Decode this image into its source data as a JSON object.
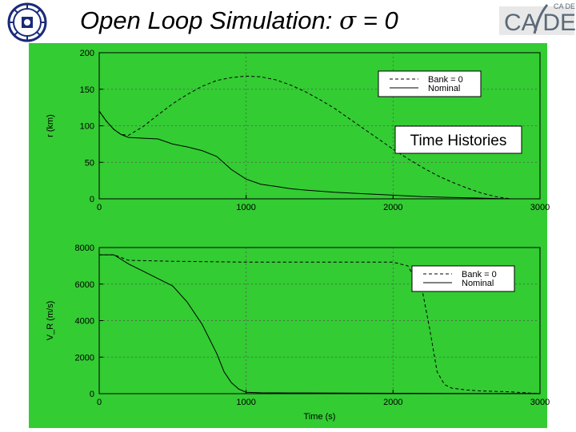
{
  "slide": {
    "title_prefix": "Open Loop Simulation: ",
    "title_symbol": "σ",
    "title_suffix": " = 0",
    "annotation": "Time Histories",
    "logo_right_text": "CA DE",
    "logo_right_small": "CA DE",
    "plot_bg_color": "#33cc33"
  },
  "chart_data": [
    {
      "type": "line",
      "xlabel": "",
      "ylabel": "r (km)",
      "xlim": [
        0,
        3000
      ],
      "ylim": [
        0,
        200
      ],
      "xticks": [
        0,
        1000,
        2000,
        3000
      ],
      "yticks": [
        0,
        50,
        100,
        150,
        200
      ],
      "grid": true,
      "legend": "top-right",
      "series": [
        {
          "name": "Bank = 0",
          "style": "dashed",
          "x": [
            0,
            50,
            100,
            150,
            200,
            300,
            400,
            500,
            600,
            700,
            800,
            900,
            1000,
            1100,
            1200,
            1300,
            1400,
            1500,
            1600,
            1700,
            1800,
            1900,
            2000,
            2100,
            2200,
            2300,
            2400,
            2500,
            2600,
            2700,
            2800
          ],
          "y": [
            120,
            106,
            95,
            88,
            87,
            99,
            115,
            130,
            143,
            154,
            162,
            166,
            168,
            167,
            163,
            156,
            147,
            136,
            124,
            110,
            96,
            82,
            68,
            55,
            43,
            32,
            23,
            15,
            8,
            3,
            0
          ]
        },
        {
          "name": "Nominal",
          "style": "solid",
          "x": [
            0,
            50,
            100,
            150,
            200,
            300,
            400,
            500,
            600,
            700,
            800,
            900,
            1000,
            1100,
            1200,
            1300,
            1400,
            1600,
            1800,
            2000,
            2200,
            2400,
            2600,
            2800
          ],
          "y": [
            120,
            106,
            95,
            88,
            84,
            83,
            82,
            75,
            71,
            66,
            58,
            40,
            27,
            20,
            17,
            14,
            12,
            9,
            7,
            5,
            3,
            2,
            1,
            0
          ]
        }
      ]
    },
    {
      "type": "line",
      "xlabel": "Time (s)",
      "ylabel": "V_R (m/s)",
      "xlim": [
        0,
        3000
      ],
      "ylim": [
        0,
        8000
      ],
      "xticks": [
        0,
        1000,
        2000,
        3000
      ],
      "yticks": [
        0,
        2000,
        4000,
        6000,
        8000
      ],
      "grid": true,
      "legend": "top-right",
      "series": [
        {
          "name": "Bank = 0",
          "style": "dashed",
          "x": [
            0,
            100,
            200,
            500,
            1000,
            1500,
            2000,
            2100,
            2200,
            2250,
            2300,
            2350,
            2400,
            2500,
            2600,
            2800,
            3000
          ],
          "y": [
            7600,
            7600,
            7300,
            7250,
            7200,
            7200,
            7200,
            7000,
            5600,
            3500,
            1200,
            500,
            300,
            200,
            150,
            100,
            0
          ]
        },
        {
          "name": "Nominal",
          "style": "solid",
          "x": [
            0,
            100,
            200,
            300,
            400,
            500,
            600,
            700,
            800,
            850,
            900,
            950,
            1000,
            1100,
            1300,
            1600,
            2000,
            2500,
            3000
          ],
          "y": [
            7600,
            7600,
            7100,
            6700,
            6300,
            5900,
            5000,
            3800,
            2200,
            1200,
            600,
            250,
            80,
            50,
            40,
            30,
            20,
            15,
            10
          ]
        }
      ]
    }
  ]
}
